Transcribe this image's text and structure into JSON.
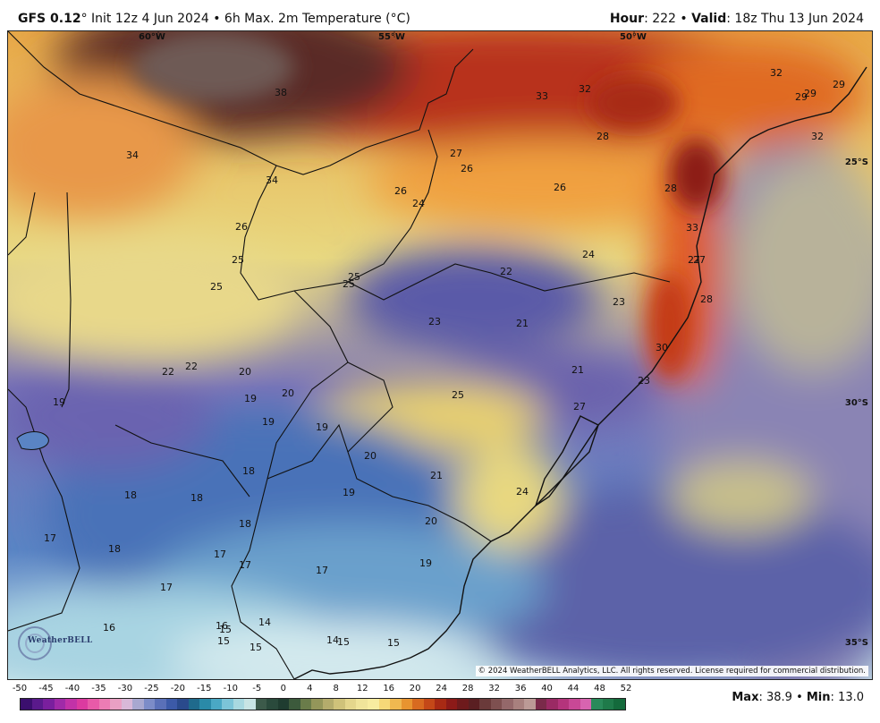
{
  "header": {
    "model": "GFS 0.12",
    "init_text": "° Init 12z 4 Jun 2024 • 6h Max. 2m Temperature (°C)",
    "hour_label": "Hour",
    "hour_value": ": 222 • ",
    "valid_label": "Valid",
    "valid_value": ": 18z Thu 13 Jun 2024"
  },
  "map": {
    "lon_labels": [
      "60°W",
      "55°W",
      "50°W"
    ],
    "lat_labels": [
      "25°S",
      "30°S",
      "35°S"
    ],
    "logo_text": "WeatherBELL",
    "copyright": "© 2024 WeatherBELL Analytics, LLC. All rights reserved. License required for commercial distribution.",
    "temperature_labels": [
      "38",
      "34",
      "34",
      "33",
      "32",
      "32",
      "32",
      "29",
      "29",
      "29",
      "27",
      "26",
      "26",
      "24",
      "28",
      "28",
      "26",
      "26",
      "25",
      "25",
      "25",
      "25",
      "22",
      "24",
      "33",
      "27",
      "28",
      "23",
      "23",
      "21",
      "30",
      "21",
      "23",
      "27",
      "25",
      "22",
      "22",
      "20",
      "20",
      "19",
      "19",
      "19",
      "19",
      "20",
      "21",
      "18",
      "18",
      "18",
      "19",
      "18",
      "18",
      "20",
      "17",
      "17",
      "17",
      "17",
      "17",
      "19",
      "16",
      "16",
      "15",
      "15",
      "15",
      "14",
      "14",
      "15",
      "15",
      "27",
      "24"
    ]
  },
  "legend": {
    "ticks": [
      "-50",
      "-45",
      "-40",
      "-35",
      "-30",
      "-25",
      "-20",
      "-15",
      "-10",
      "-5",
      "0",
      "4",
      "8",
      "12",
      "16",
      "20",
      "24",
      "28",
      "32",
      "36",
      "40",
      "44",
      "48",
      "52"
    ],
    "colors": [
      "#3b0f6e",
      "#5a1a8c",
      "#7a1f9e",
      "#a02aa8",
      "#c232a8",
      "#dc3aa0",
      "#e85aa8",
      "#ec7cb4",
      "#e9a0c4",
      "#d8b8d8",
      "#a8a8d0",
      "#7c8cc8",
      "#5a70b8",
      "#3c5aa8",
      "#2a4a8c",
      "#1f6a8c",
      "#2a8aa8",
      "#4aa8c4",
      "#7cc4d8",
      "#a8d8e0",
      "#c8e4e4",
      "#3c5a4a",
      "#2a4a3c",
      "#1f3c30",
      "#3c5a3c",
      "#6a7c4a",
      "#94965a",
      "#b4ac6c",
      "#cfc27a",
      "#e4d68c",
      "#f0e49a",
      "#f8eca0",
      "#f6d878",
      "#f0b850",
      "#e89430",
      "#d86a20",
      "#c44818",
      "#a82a14",
      "#8c1a18",
      "#6e1a1c",
      "#5a1f22",
      "#6a3a3a",
      "#7e5050",
      "#94686a",
      "#a8807e",
      "#bc9a96",
      "#7a2a4a",
      "#9a2a64",
      "#b4347c",
      "#c84896",
      "#d864b0",
      "#2a8a5a",
      "#1f7a4a",
      "#146a3c"
    ],
    "max_label": "Max",
    "max_value": ": 38.9 • ",
    "min_label": "Min",
    "min_value": ": 13.0"
  }
}
